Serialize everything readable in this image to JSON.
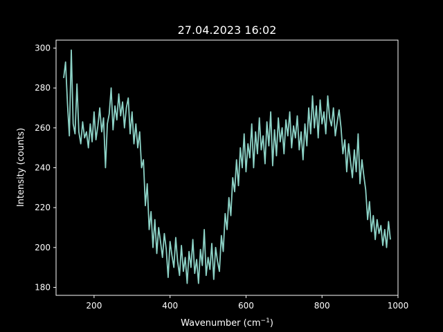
{
  "chart_data": {
    "type": "line",
    "title": "27.04.2023 16:02",
    "xlabel_main": "Wavenumber (cm",
    "xlabel_sup": "−1",
    "xlabel_close": ")",
    "ylabel": "Intensity (counts)",
    "xlim": [
      100,
      1000
    ],
    "ylim": [
      176,
      304
    ],
    "xticks": [
      200,
      400,
      600,
      800,
      1000
    ],
    "yticks": [
      180,
      200,
      220,
      240,
      260,
      280,
      300
    ],
    "grid": false,
    "legend": "none",
    "colors": {
      "background": "#000000",
      "axes": "#ffffff",
      "series": "#8dd3c7"
    },
    "series": [
      {
        "x": [
          120,
          125,
          130,
          135,
          140,
          145,
          150,
          155,
          160,
          165,
          170,
          175,
          180,
          185,
          190,
          195,
          200,
          205,
          210,
          215,
          220,
          225,
          230,
          235,
          240,
          245,
          250,
          255,
          260,
          265,
          270,
          275,
          280,
          285,
          290,
          295,
          300,
          305,
          310,
          315,
          320,
          325,
          330,
          335,
          340,
          345,
          350,
          355,
          360,
          365,
          370,
          375,
          380,
          385,
          390,
          395,
          400,
          405,
          410,
          415,
          420,
          425,
          430,
          435,
          440,
          445,
          450,
          455,
          460,
          465,
          470,
          475,
          480,
          485,
          490,
          495,
          500,
          505,
          510,
          515,
          520,
          525,
          530,
          535,
          540,
          545,
          550,
          555,
          560,
          565,
          570,
          575,
          580,
          585,
          590,
          595,
          600,
          605,
          610,
          615,
          620,
          625,
          630,
          635,
          640,
          645,
          650,
          655,
          660,
          665,
          670,
          675,
          680,
          685,
          690,
          695,
          700,
          705,
          710,
          715,
          720,
          725,
          730,
          735,
          740,
          745,
          750,
          755,
          760,
          765,
          770,
          775,
          780,
          785,
          790,
          795,
          800,
          805,
          810,
          815,
          820,
          825,
          830,
          835,
          840,
          845,
          850,
          855,
          860,
          865,
          870,
          875,
          880,
          885,
          890,
          895,
          900,
          905,
          910,
          915,
          920,
          925,
          930,
          935,
          940,
          945,
          950,
          955,
          960,
          965,
          970,
          975,
          980
        ],
        "values": [
          285,
          293,
          272,
          256,
          299,
          262,
          257,
          282,
          258,
          252,
          263,
          255,
          258,
          250,
          262,
          253,
          268,
          254,
          261,
          270,
          258,
          265,
          240,
          262,
          267,
          280,
          259,
          271,
          264,
          277,
          266,
          273,
          260,
          270,
          275,
          257,
          268,
          252,
          262,
          250,
          258,
          240,
          244,
          221,
          232,
          209,
          218,
          200,
          214,
          197,
          210,
          203,
          195,
          207,
          199,
          185,
          203,
          196,
          190,
          205,
          193,
          186,
          201,
          188,
          195,
          182,
          198,
          190,
          204,
          187,
          194,
          182,
          199,
          191,
          209,
          186,
          195,
          189,
          202,
          184,
          200,
          193,
          188,
          206,
          198,
          217,
          209,
          225,
          216,
          235,
          228,
          244,
          231,
          250,
          240,
          257,
          238,
          252,
          245,
          262,
          240,
          258,
          247,
          265,
          249,
          256,
          242,
          263,
          251,
          268,
          241,
          259,
          246,
          265,
          253,
          260,
          247,
          264,
          256,
          268,
          250,
          261,
          255,
          266,
          249,
          258,
          244,
          262,
          251,
          270,
          257,
          276,
          260,
          271,
          255,
          274,
          262,
          268,
          257,
          276,
          265,
          261,
          270,
          256,
          263,
          269,
          260,
          247,
          254,
          238,
          252,
          243,
          235,
          249,
          238,
          257,
          232,
          244,
          236,
          229,
          214,
          223,
          208,
          216,
          204,
          214,
          207,
          211,
          201,
          209,
          200,
          213,
          204
        ]
      }
    ]
  }
}
